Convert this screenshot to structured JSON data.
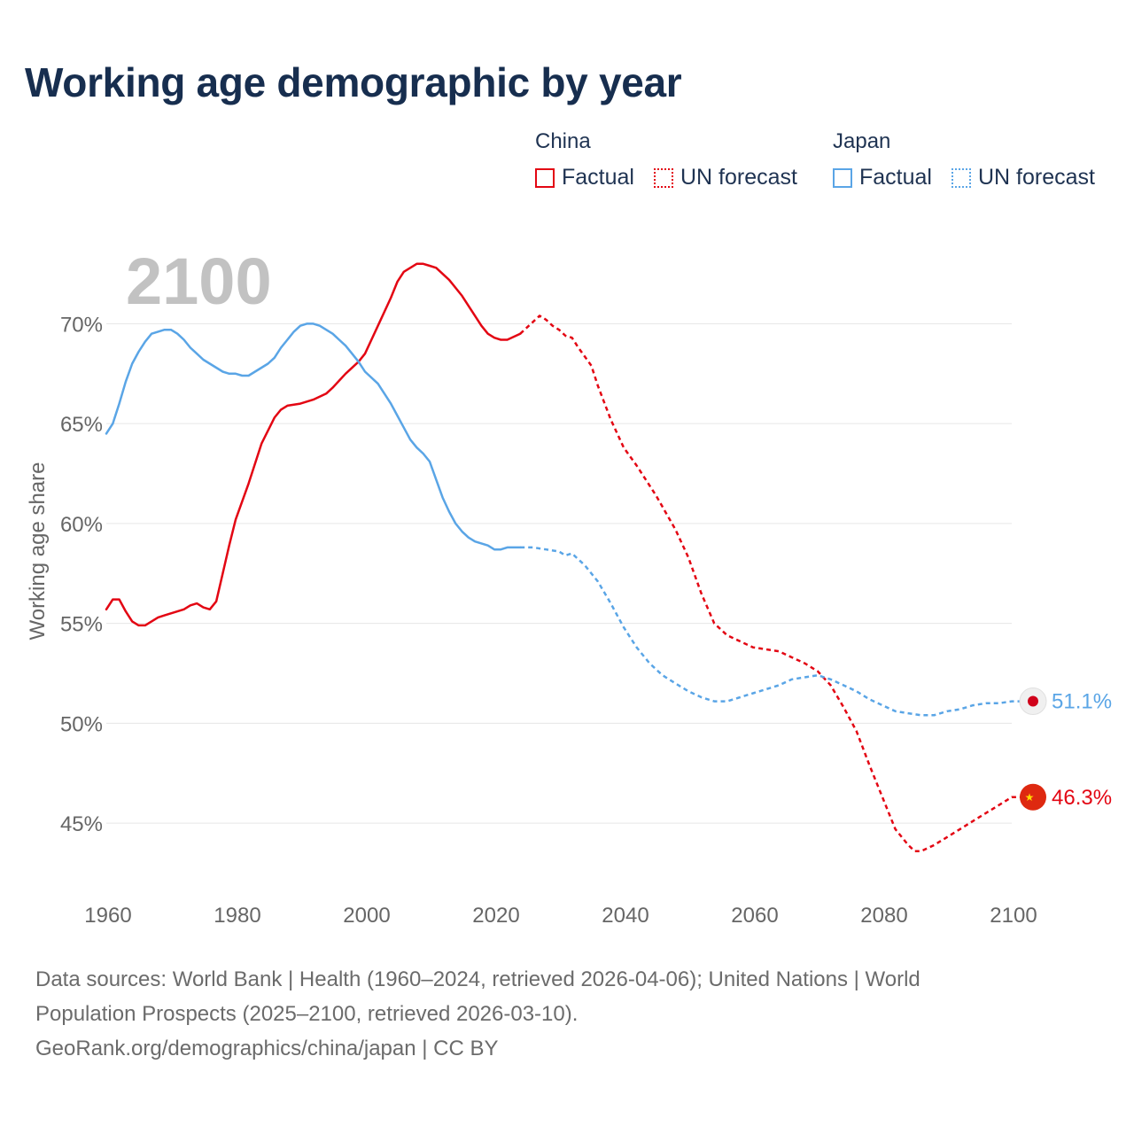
{
  "colors": {
    "china": "#e30613",
    "japan": "#5aa5e6",
    "grid": "#e6e6e6",
    "axis_text": "#666666",
    "year_watermark": "#c2c2c2",
    "title": "#172e4f"
  },
  "legend": {
    "china_label": "China",
    "japan_label": "Japan",
    "factual": "Factual",
    "forecast": "UN forecast"
  },
  "footer": {
    "line1": "Data sources: World Bank | Health (1960–2024, retrieved 2026-04-06); United Nations | World",
    "line2": "Population Prospects (2025–2100, retrieved 2026-03-10).",
    "line3": "GeoRank.org/demographics/china/japan | CC BY"
  },
  "chart_data": {
    "type": "line",
    "title": "Working age demographic by year",
    "year_display": "2100",
    "ylabel": "Working age share",
    "xlabel": "",
    "xlim": [
      1960,
      2100
    ],
    "ylim": [
      41.5,
      73.7
    ],
    "x_ticks": [
      1960,
      1980,
      2000,
      2020,
      2040,
      2060,
      2080,
      2100
    ],
    "x_tick_labels": [
      "1960",
      "1980",
      "2000",
      "2020",
      "2040",
      "2060",
      "2080",
      "2100"
    ],
    "y_ticks": [
      45,
      50,
      55,
      60,
      65,
      70
    ],
    "y_tick_labels": [
      "45%",
      "50%",
      "55%",
      "60%",
      "65%",
      "70%"
    ],
    "series": [
      {
        "name": "China",
        "factual_end_year": 2024,
        "end_label": "46.3%",
        "points": [
          [
            1960,
            55.7
          ],
          [
            1961,
            56.2
          ],
          [
            1962,
            56.2
          ],
          [
            1963,
            55.6
          ],
          [
            1964,
            55.1
          ],
          [
            1965,
            54.9
          ],
          [
            1966,
            54.9
          ],
          [
            1967,
            55.1
          ],
          [
            1968,
            55.3
          ],
          [
            1969,
            55.4
          ],
          [
            1970,
            55.5
          ],
          [
            1972,
            55.7
          ],
          [
            1973,
            55.9
          ],
          [
            1974,
            56.0
          ],
          [
            1975,
            55.8
          ],
          [
            1976,
            55.7
          ],
          [
            1977,
            56.1
          ],
          [
            1978,
            57.5
          ],
          [
            1979,
            58.9
          ],
          [
            1980,
            60.2
          ],
          [
            1982,
            62.0
          ],
          [
            1984,
            64.0
          ],
          [
            1986,
            65.3
          ],
          [
            1987,
            65.7
          ],
          [
            1988,
            65.9
          ],
          [
            1990,
            66.0
          ],
          [
            1992,
            66.2
          ],
          [
            1994,
            66.5
          ],
          [
            1995,
            66.8
          ],
          [
            1997,
            67.5
          ],
          [
            1999,
            68.1
          ],
          [
            2000,
            68.5
          ],
          [
            2002,
            69.9
          ],
          [
            2004,
            71.3
          ],
          [
            2005,
            72.1
          ],
          [
            2006,
            72.6
          ],
          [
            2008,
            73.0
          ],
          [
            2009,
            73.0
          ],
          [
            2010,
            72.9
          ],
          [
            2011,
            72.8
          ],
          [
            2013,
            72.2
          ],
          [
            2015,
            71.4
          ],
          [
            2017,
            70.4
          ],
          [
            2018,
            69.9
          ],
          [
            2019,
            69.5
          ],
          [
            2020,
            69.3
          ],
          [
            2021,
            69.2
          ],
          [
            2022,
            69.2
          ],
          [
            2024,
            69.5
          ],
          [
            2025,
            69.8
          ],
          [
            2026,
            70.1
          ],
          [
            2027,
            70.4
          ],
          [
            2028,
            70.2
          ],
          [
            2029,
            69.9
          ],
          [
            2030,
            69.7
          ],
          [
            2031,
            69.4
          ],
          [
            2032,
            69.3
          ],
          [
            2033,
            68.8
          ],
          [
            2035,
            67.9
          ],
          [
            2036,
            66.9
          ],
          [
            2038,
            65.2
          ],
          [
            2040,
            63.8
          ],
          [
            2042,
            62.9
          ],
          [
            2045,
            61.4
          ],
          [
            2048,
            59.7
          ],
          [
            2050,
            58.3
          ],
          [
            2052,
            56.5
          ],
          [
            2054,
            55.0
          ],
          [
            2056,
            54.4
          ],
          [
            2058,
            54.1
          ],
          [
            2060,
            53.8
          ],
          [
            2062,
            53.7
          ],
          [
            2064,
            53.6
          ],
          [
            2066,
            53.3
          ],
          [
            2068,
            53.0
          ],
          [
            2070,
            52.6
          ],
          [
            2072,
            51.9
          ],
          [
            2074,
            50.8
          ],
          [
            2076,
            49.6
          ],
          [
            2078,
            47.9
          ],
          [
            2080,
            46.3
          ],
          [
            2082,
            44.7
          ],
          [
            2084,
            43.9
          ],
          [
            2085,
            43.6
          ],
          [
            2086,
            43.6
          ],
          [
            2088,
            43.9
          ],
          [
            2090,
            44.3
          ],
          [
            2092,
            44.7
          ],
          [
            2094,
            45.1
          ],
          [
            2096,
            45.5
          ],
          [
            2098,
            45.9
          ],
          [
            2099,
            46.1
          ],
          [
            2100,
            46.3
          ],
          [
            2103,
            46.3
          ]
        ]
      },
      {
        "name": "Japan",
        "factual_end_year": 2024,
        "end_label": "51.1%",
        "points": [
          [
            1960,
            64.5
          ],
          [
            1961,
            65.0
          ],
          [
            1962,
            66.0
          ],
          [
            1963,
            67.1
          ],
          [
            1964,
            68.0
          ],
          [
            1965,
            68.6
          ],
          [
            1966,
            69.1
          ],
          [
            1967,
            69.5
          ],
          [
            1968,
            69.6
          ],
          [
            1969,
            69.7
          ],
          [
            1970,
            69.7
          ],
          [
            1971,
            69.5
          ],
          [
            1972,
            69.2
          ],
          [
            1973,
            68.8
          ],
          [
            1974,
            68.5
          ],
          [
            1975,
            68.2
          ],
          [
            1977,
            67.8
          ],
          [
            1978,
            67.6
          ],
          [
            1979,
            67.5
          ],
          [
            1980,
            67.5
          ],
          [
            1981,
            67.4
          ],
          [
            1982,
            67.4
          ],
          [
            1983,
            67.6
          ],
          [
            1984,
            67.8
          ],
          [
            1985,
            68.0
          ],
          [
            1986,
            68.3
          ],
          [
            1987,
            68.8
          ],
          [
            1988,
            69.2
          ],
          [
            1989,
            69.6
          ],
          [
            1990,
            69.9
          ],
          [
            1991,
            70.0
          ],
          [
            1992,
            70.0
          ],
          [
            1993,
            69.9
          ],
          [
            1994,
            69.7
          ],
          [
            1995,
            69.5
          ],
          [
            1996,
            69.2
          ],
          [
            1997,
            68.9
          ],
          [
            1998,
            68.5
          ],
          [
            1999,
            68.1
          ],
          [
            2000,
            67.6
          ],
          [
            2002,
            67.0
          ],
          [
            2003,
            66.5
          ],
          [
            2004,
            66.0
          ],
          [
            2005,
            65.4
          ],
          [
            2006,
            64.8
          ],
          [
            2007,
            64.2
          ],
          [
            2008,
            63.8
          ],
          [
            2009,
            63.5
          ],
          [
            2010,
            63.1
          ],
          [
            2011,
            62.2
          ],
          [
            2012,
            61.3
          ],
          [
            2013,
            60.6
          ],
          [
            2014,
            60.0
          ],
          [
            2015,
            59.6
          ],
          [
            2016,
            59.3
          ],
          [
            2017,
            59.1
          ],
          [
            2018,
            59.0
          ],
          [
            2019,
            58.9
          ],
          [
            2020,
            58.7
          ],
          [
            2021,
            58.7
          ],
          [
            2022,
            58.8
          ],
          [
            2024,
            58.8
          ],
          [
            2026,
            58.8
          ],
          [
            2028,
            58.7
          ],
          [
            2030,
            58.6
          ],
          [
            2031,
            58.4
          ],
          [
            2032,
            58.5
          ],
          [
            2034,
            57.9
          ],
          [
            2036,
            57.1
          ],
          [
            2038,
            56.0
          ],
          [
            2040,
            54.8
          ],
          [
            2042,
            53.8
          ],
          [
            2044,
            53.0
          ],
          [
            2046,
            52.4
          ],
          [
            2048,
            52.0
          ],
          [
            2050,
            51.6
          ],
          [
            2052,
            51.3
          ],
          [
            2054,
            51.1
          ],
          [
            2056,
            51.1
          ],
          [
            2058,
            51.3
          ],
          [
            2060,
            51.5
          ],
          [
            2062,
            51.7
          ],
          [
            2064,
            51.9
          ],
          [
            2066,
            52.2
          ],
          [
            2068,
            52.3
          ],
          [
            2070,
            52.4
          ],
          [
            2072,
            52.2
          ],
          [
            2074,
            51.9
          ],
          [
            2076,
            51.6
          ],
          [
            2078,
            51.2
          ],
          [
            2080,
            50.9
          ],
          [
            2082,
            50.6
          ],
          [
            2084,
            50.5
          ],
          [
            2086,
            50.4
          ],
          [
            2088,
            50.4
          ],
          [
            2090,
            50.6
          ],
          [
            2092,
            50.7
          ],
          [
            2094,
            50.9
          ],
          [
            2096,
            51.0
          ],
          [
            2098,
            51.0
          ],
          [
            2100,
            51.1
          ],
          [
            2103,
            51.1
          ]
        ]
      }
    ]
  }
}
